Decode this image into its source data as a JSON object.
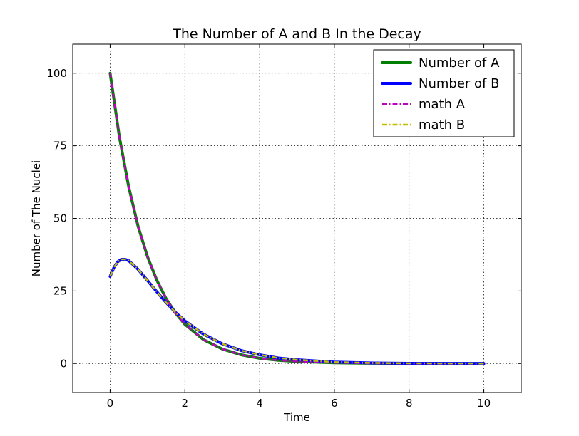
{
  "chart_data": {
    "type": "line",
    "title": "The Number of A and B In the Decay",
    "xlabel": "Time",
    "ylabel": "Number of The Nuclei",
    "xlim": [
      -1,
      11
    ],
    "ylim": [
      -10,
      110
    ],
    "xticks": [
      0,
      2,
      4,
      6,
      8,
      10
    ],
    "yticks": [
      0,
      25,
      50,
      75,
      100
    ],
    "grid": true,
    "legend_position": "top-right",
    "series": [
      {
        "name": "Number of A",
        "color": "#007f00",
        "style": "solid-thick",
        "x": [
          0,
          0.25,
          0.5,
          0.75,
          1,
          1.25,
          1.5,
          1.75,
          2,
          2.5,
          3,
          3.5,
          4,
          4.5,
          5,
          6,
          7,
          8,
          9,
          10
        ],
        "y": [
          100,
          77.9,
          60.7,
          47.2,
          36.8,
          28.7,
          22.3,
          17.4,
          13.5,
          8.2,
          5.0,
          3.0,
          1.8,
          1.1,
          0.7,
          0.25,
          0.09,
          0.03,
          0.01,
          0.0
        ]
      },
      {
        "name": "Number of B",
        "color": "#0000ff",
        "style": "solid-thick",
        "x": [
          0,
          0.1,
          0.2,
          0.3,
          0.4,
          0.5,
          0.75,
          1,
          1.25,
          1.5,
          1.75,
          2,
          2.5,
          3,
          3.5,
          4,
          4.5,
          5,
          6,
          7,
          8,
          9,
          10
        ],
        "y": [
          30,
          33.0,
          35.0,
          35.9,
          35.9,
          35.4,
          32.4,
          28.6,
          24.7,
          21.0,
          17.6,
          14.7,
          10.1,
          6.8,
          4.5,
          3.0,
          1.9,
          1.3,
          0.5,
          0.2,
          0.07,
          0.03,
          0.01
        ]
      },
      {
        "name": "math A",
        "color": "#bf00bf",
        "style": "dashdot",
        "x": [
          0,
          0.25,
          0.5,
          0.75,
          1,
          1.25,
          1.5,
          1.75,
          2,
          2.5,
          3,
          3.5,
          4,
          4.5,
          5,
          6,
          7,
          8,
          9,
          10
        ],
        "y": [
          100,
          77.9,
          60.7,
          47.2,
          36.8,
          28.7,
          22.3,
          17.4,
          13.5,
          8.2,
          5.0,
          3.0,
          1.8,
          1.1,
          0.7,
          0.25,
          0.09,
          0.03,
          0.01,
          0.0
        ]
      },
      {
        "name": "math B",
        "color": "#bfbf00",
        "style": "dashdot",
        "x": [
          0,
          0.1,
          0.2,
          0.3,
          0.4,
          0.5,
          0.75,
          1,
          1.25,
          1.5,
          1.75,
          2,
          2.5,
          3,
          3.5,
          4,
          4.5,
          5,
          6,
          7,
          8,
          9,
          10
        ],
        "y": [
          30,
          33.0,
          35.0,
          35.9,
          35.9,
          35.4,
          32.4,
          28.6,
          24.7,
          21.0,
          17.6,
          14.7,
          10.1,
          6.8,
          4.5,
          3.0,
          1.9,
          1.3,
          0.5,
          0.2,
          0.07,
          0.03,
          0.01
        ]
      }
    ]
  }
}
